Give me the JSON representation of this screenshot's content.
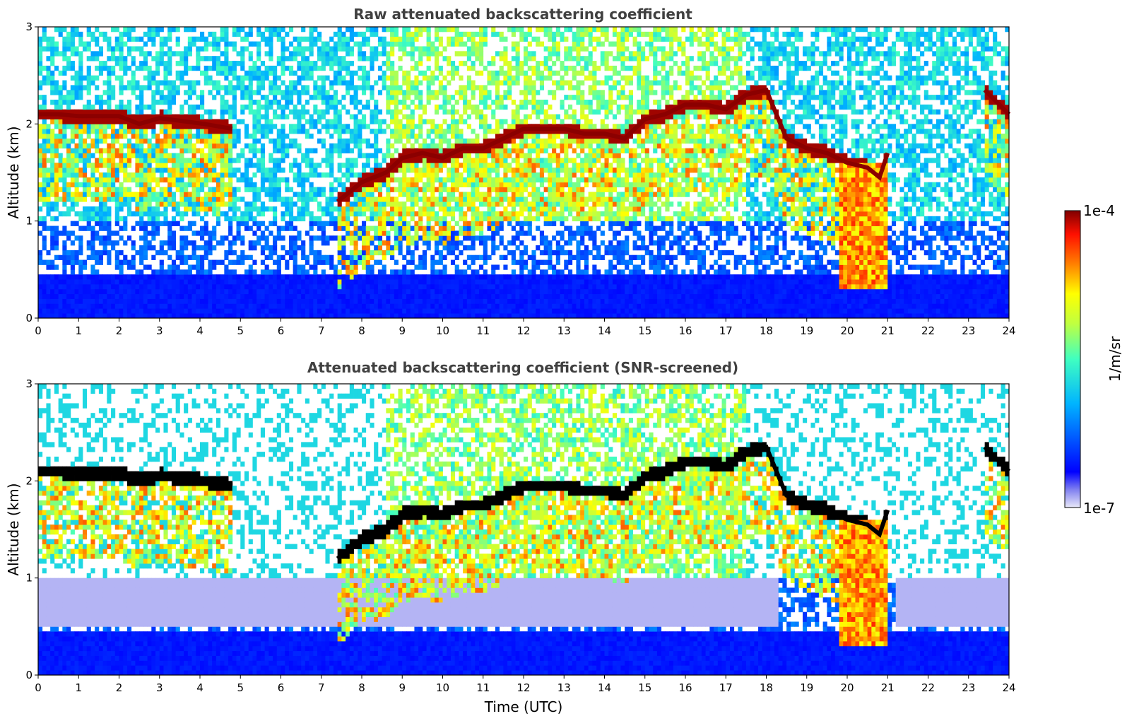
{
  "chart_data": [
    {
      "type": "heatmap",
      "title": "Raw attenuated backscattering coefficient",
      "xlabel": "",
      "ylabel": "Altitude (km)",
      "xlim": [
        0,
        24
      ],
      "ylim": [
        0,
        3
      ],
      "xticks": [
        "0",
        "1",
        "2",
        "3",
        "4",
        "5",
        "6",
        "7",
        "8",
        "9",
        "10",
        "11",
        "12",
        "13",
        "14",
        "15",
        "16",
        "17",
        "18",
        "19",
        "20",
        "21",
        "22",
        "23",
        "24"
      ],
      "yticks": [
        "0",
        "1",
        "2",
        "3"
      ],
      "screened": false,
      "cloud_base_km": [
        [
          0.0,
          2.1
        ],
        [
          0.5,
          2.1
        ],
        [
          1.0,
          2.08
        ],
        [
          1.5,
          2.08
        ],
        [
          2.0,
          2.08
        ],
        [
          2.5,
          2.0
        ],
        [
          3.0,
          2.06
        ],
        [
          4.1,
          2.0
        ],
        [
          4.8,
          1.95
        ],
        [
          7.4,
          1.2
        ],
        [
          8.0,
          1.4
        ],
        [
          8.6,
          1.5
        ],
        [
          9.0,
          1.65
        ],
        [
          9.5,
          1.7
        ],
        [
          10.0,
          1.65
        ],
        [
          10.5,
          1.75
        ],
        [
          11.0,
          1.75
        ],
        [
          11.5,
          1.85
        ],
        [
          12.0,
          1.95
        ],
        [
          12.5,
          1.95
        ],
        [
          13.0,
          1.95
        ],
        [
          13.5,
          1.9
        ],
        [
          14.0,
          1.9
        ],
        [
          14.5,
          1.85
        ],
        [
          15.0,
          2.05
        ],
        [
          15.5,
          2.1
        ],
        [
          16.0,
          2.2
        ],
        [
          16.5,
          2.2
        ],
        [
          17.0,
          2.15
        ],
        [
          17.5,
          2.3
        ],
        [
          18.0,
          2.35
        ],
        [
          18.5,
          1.85
        ],
        [
          19.0,
          1.75
        ],
        [
          19.5,
          1.7
        ],
        [
          20.0,
          1.6
        ],
        [
          20.5,
          1.55
        ],
        [
          20.8,
          1.45
        ],
        [
          21.0,
          1.7
        ],
        [
          23.4,
          2.35
        ],
        [
          24.0,
          2.1
        ]
      ]
    },
    {
      "type": "heatmap",
      "title": "Attenuated backscattering coefficient (SNR-screened)",
      "xlabel": "Time (UTC)",
      "ylabel": "Altitude (km)",
      "xlim": [
        0,
        24
      ],
      "ylim": [
        0,
        3
      ],
      "xticks": [
        "0",
        "1",
        "2",
        "3",
        "4",
        "5",
        "6",
        "7",
        "8",
        "9",
        "10",
        "11",
        "12",
        "13",
        "14",
        "15",
        "16",
        "17",
        "18",
        "19",
        "20",
        "21",
        "22",
        "23",
        "24"
      ],
      "yticks": [
        "0",
        "1",
        "2",
        "3"
      ],
      "screened": true,
      "cloud_base_km": [
        [
          0.0,
          2.1
        ],
        [
          0.5,
          2.1
        ],
        [
          1.0,
          2.08
        ],
        [
          1.5,
          2.08
        ],
        [
          2.0,
          2.08
        ],
        [
          2.5,
          2.0
        ],
        [
          3.0,
          2.06
        ],
        [
          4.1,
          2.0
        ],
        [
          4.8,
          1.95
        ],
        [
          7.4,
          1.2
        ],
        [
          8.0,
          1.4
        ],
        [
          8.6,
          1.5
        ],
        [
          9.0,
          1.65
        ],
        [
          9.5,
          1.7
        ],
        [
          10.0,
          1.65
        ],
        [
          10.5,
          1.75
        ],
        [
          11.0,
          1.75
        ],
        [
          11.5,
          1.85
        ],
        [
          12.0,
          1.95
        ],
        [
          12.5,
          1.95
        ],
        [
          13.0,
          1.95
        ],
        [
          13.5,
          1.9
        ],
        [
          14.0,
          1.9
        ],
        [
          14.5,
          1.85
        ],
        [
          15.0,
          2.05
        ],
        [
          15.5,
          2.1
        ],
        [
          16.0,
          2.2
        ],
        [
          16.5,
          2.2
        ],
        [
          17.0,
          2.15
        ],
        [
          17.5,
          2.3
        ],
        [
          18.0,
          2.35
        ],
        [
          18.5,
          1.85
        ],
        [
          19.0,
          1.75
        ],
        [
          19.5,
          1.7
        ],
        [
          20.0,
          1.6
        ],
        [
          20.5,
          1.55
        ],
        [
          20.8,
          1.45
        ],
        [
          21.0,
          1.7
        ],
        [
          23.4,
          2.35
        ],
        [
          24.0,
          2.1
        ]
      ]
    }
  ],
  "colorbar": {
    "label": "1/m/sr",
    "max_label": "1e-4",
    "min_label": "1e-7",
    "min": 1e-07,
    "max": 0.0001,
    "scale": "log",
    "colormap": "jet",
    "colors": [
      "#e8e8f8",
      "#0000ff",
      "#00c8ff",
      "#80ff80",
      "#ffff00",
      "#ff8000",
      "#ff0000",
      "#800000"
    ]
  }
}
